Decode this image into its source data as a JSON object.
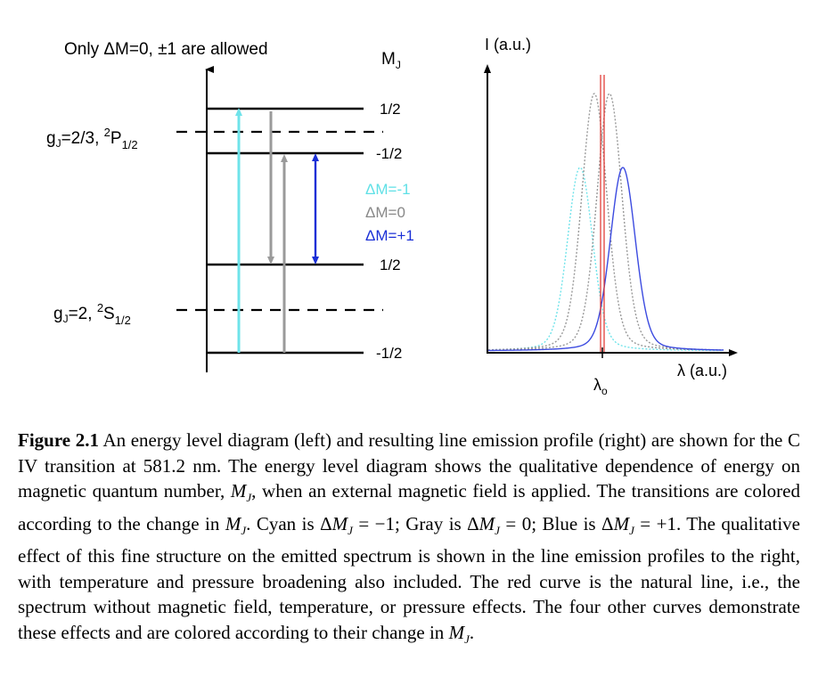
{
  "diagram": {
    "rule_text": "Only ΔM=0, ±1 are allowed",
    "mj_header_main": "M",
    "mj_header_sub": "J",
    "upper_state": {
      "g_base": "g",
      "g_sub": "J",
      "g_value": "=2/3, ",
      "term_sup": "2",
      "term_main": "P",
      "term_sub": "1/2"
    },
    "lower_state": {
      "g_base": "g",
      "g_sub": "J",
      "g_value": "=2, ",
      "term_sup": "2",
      "term_main": "S",
      "term_sub": "1/2"
    },
    "level_labels": [
      "1/2",
      "-1/2",
      "1/2",
      "-1/2"
    ],
    "legend": [
      {
        "label": "ΔM=-1",
        "color": "#5fe0e6"
      },
      {
        "label": "ΔM=0",
        "color": "#888888"
      },
      {
        "label": "ΔM=+1",
        "color": "#1a2fd6"
      }
    ]
  },
  "spectrum": {
    "y_axis_label": "I (a.u.)",
    "x_axis_label": "λ (a.u.)",
    "center_label": "λ",
    "center_label_sub": "o",
    "curves": [
      {
        "name": "natural",
        "color": "#e0302a"
      },
      {
        "name": "delta-m-minus-1",
        "color": "#6fe3ea"
      },
      {
        "name": "delta-m-0",
        "color": "#999999"
      },
      {
        "name": "delta-m-plus-1",
        "color": "#3c4be0"
      }
    ]
  },
  "caption": {
    "label": "Figure 2.1",
    "p1": " An energy level diagram (left) and resulting line emission profile (right) are shown for the C IV transition at 581.2 nm. The energy level diagram shows the qualitative dependence of energy on magnetic quantum number, ",
    "mj": "M",
    "mj_sub": "J",
    "p2": ", when an external magnetic field is applied.  The transitions are colored according to the change in ",
    "p3": ".  Cyan is Δ",
    "p4": " = −1; Gray is Δ",
    "p5": " = 0; Blue is Δ",
    "p6": " = +1.  The qualitative effect of this fine structure on the emitted spectrum is shown in the line emission profiles to the right, with temperature and pressure broadening also included.  The red curve is the natural line, i.e., the spectrum without magnetic field, temperature, or pressure effects. The four other curves demonstrate these effects and are colored according to their change in ",
    "p7": "."
  }
}
